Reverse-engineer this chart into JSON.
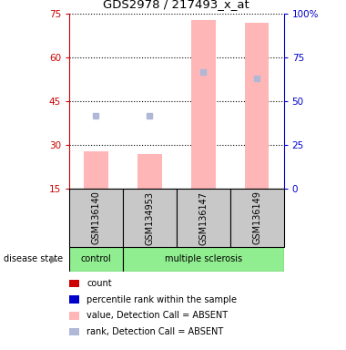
{
  "title": "GDS2978 / 217493_x_at",
  "samples": [
    "GSM136140",
    "GSM134953",
    "GSM136147",
    "GSM136149"
  ],
  "bar_values_absent": [
    28,
    27,
    73,
    72
  ],
  "rank_dots_absent": [
    40,
    40,
    55,
    53
  ],
  "ylim_left": [
    15,
    75
  ],
  "ylim_right": [
    0,
    100
  ],
  "yticks_left": [
    15,
    30,
    45,
    60,
    75
  ],
  "yticks_right": [
    0,
    25,
    50,
    75,
    100
  ],
  "ytick_labels_right": [
    "0",
    "25",
    "50",
    "75",
    "100%"
  ],
  "bar_color_absent": "#FFB6B6",
  "dot_color_absent": "#B0B8D8",
  "legend_items": [
    {
      "color": "#CC0000",
      "label": "count"
    },
    {
      "color": "#0000CC",
      "label": "percentile rank within the sample"
    },
    {
      "color": "#FFB6B6",
      "label": "value, Detection Call = ABSENT"
    },
    {
      "color": "#B0B8D8",
      "label": "rank, Detection Call = ABSENT"
    }
  ],
  "left_axis_color": "#CC0000",
  "right_axis_color": "#0000CC",
  "control_color": "#90EE90",
  "sample_box_color": "#C8C8C8"
}
